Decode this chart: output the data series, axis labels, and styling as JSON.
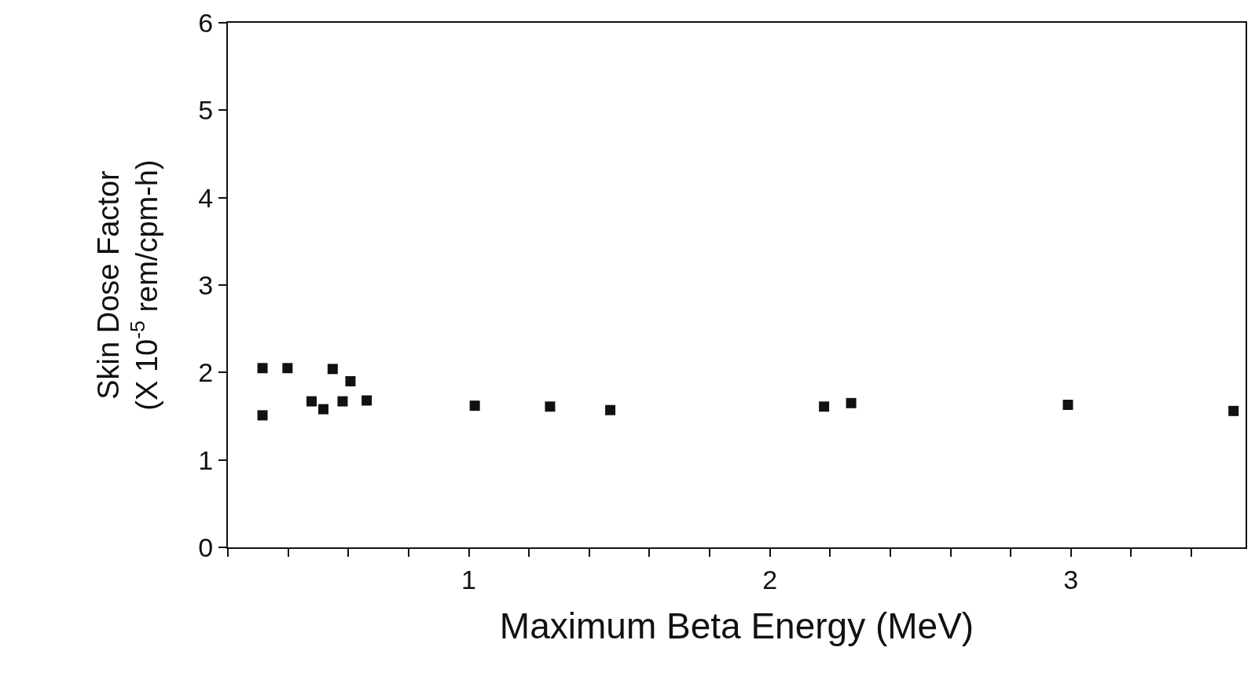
{
  "chart_data": {
    "type": "scatter",
    "xlabel": "Maximum Beta Energy (MeV)",
    "ylabel": "Skin Dose Factor\n(X 10$^{-5}$ rem/cpm-h)",
    "x": [
      0.315,
      0.315,
      0.398,
      0.478,
      0.517,
      0.548,
      0.581,
      0.607,
      0.661,
      1.02,
      1.27,
      1.47,
      2.18,
      2.27,
      2.99,
      3.54
    ],
    "series": [
      {
        "color": "#111111",
        "values": [
          2.05,
          1.51,
          2.05,
          1.67,
          1.58,
          2.04,
          1.67,
          1.9,
          1.68,
          1.62,
          1.61,
          1.57,
          1.61,
          1.65,
          1.63,
          1.56
        ]
      }
    ],
    "marker": "square",
    "xlim": [
      0.2,
      3.58
    ],
    "xticks": [
      {
        "value": 0.2,
        "label": null
      },
      {
        "value": 0.4,
        "label": null
      },
      {
        "value": 0.6,
        "label": null
      },
      {
        "value": 0.8,
        "label": null
      },
      1,
      {
        "value": 1.2,
        "label": null
      },
      {
        "value": 1.4,
        "label": null
      },
      {
        "value": 1.6,
        "label": null
      },
      {
        "value": 1.8,
        "label": null
      },
      2,
      {
        "value": 2.2,
        "label": null
      },
      {
        "value": 2.4,
        "label": null
      },
      {
        "value": 2.6,
        "label": null
      },
      {
        "value": 2.8,
        "label": null
      },
      3,
      {
        "value": 3.2,
        "label": null
      },
      {
        "value": 3.4,
        "label": null
      }
    ],
    "ylim": [
      0,
      6
    ],
    "yticks": [
      0,
      1,
      2,
      3,
      4,
      5,
      6
    ]
  }
}
